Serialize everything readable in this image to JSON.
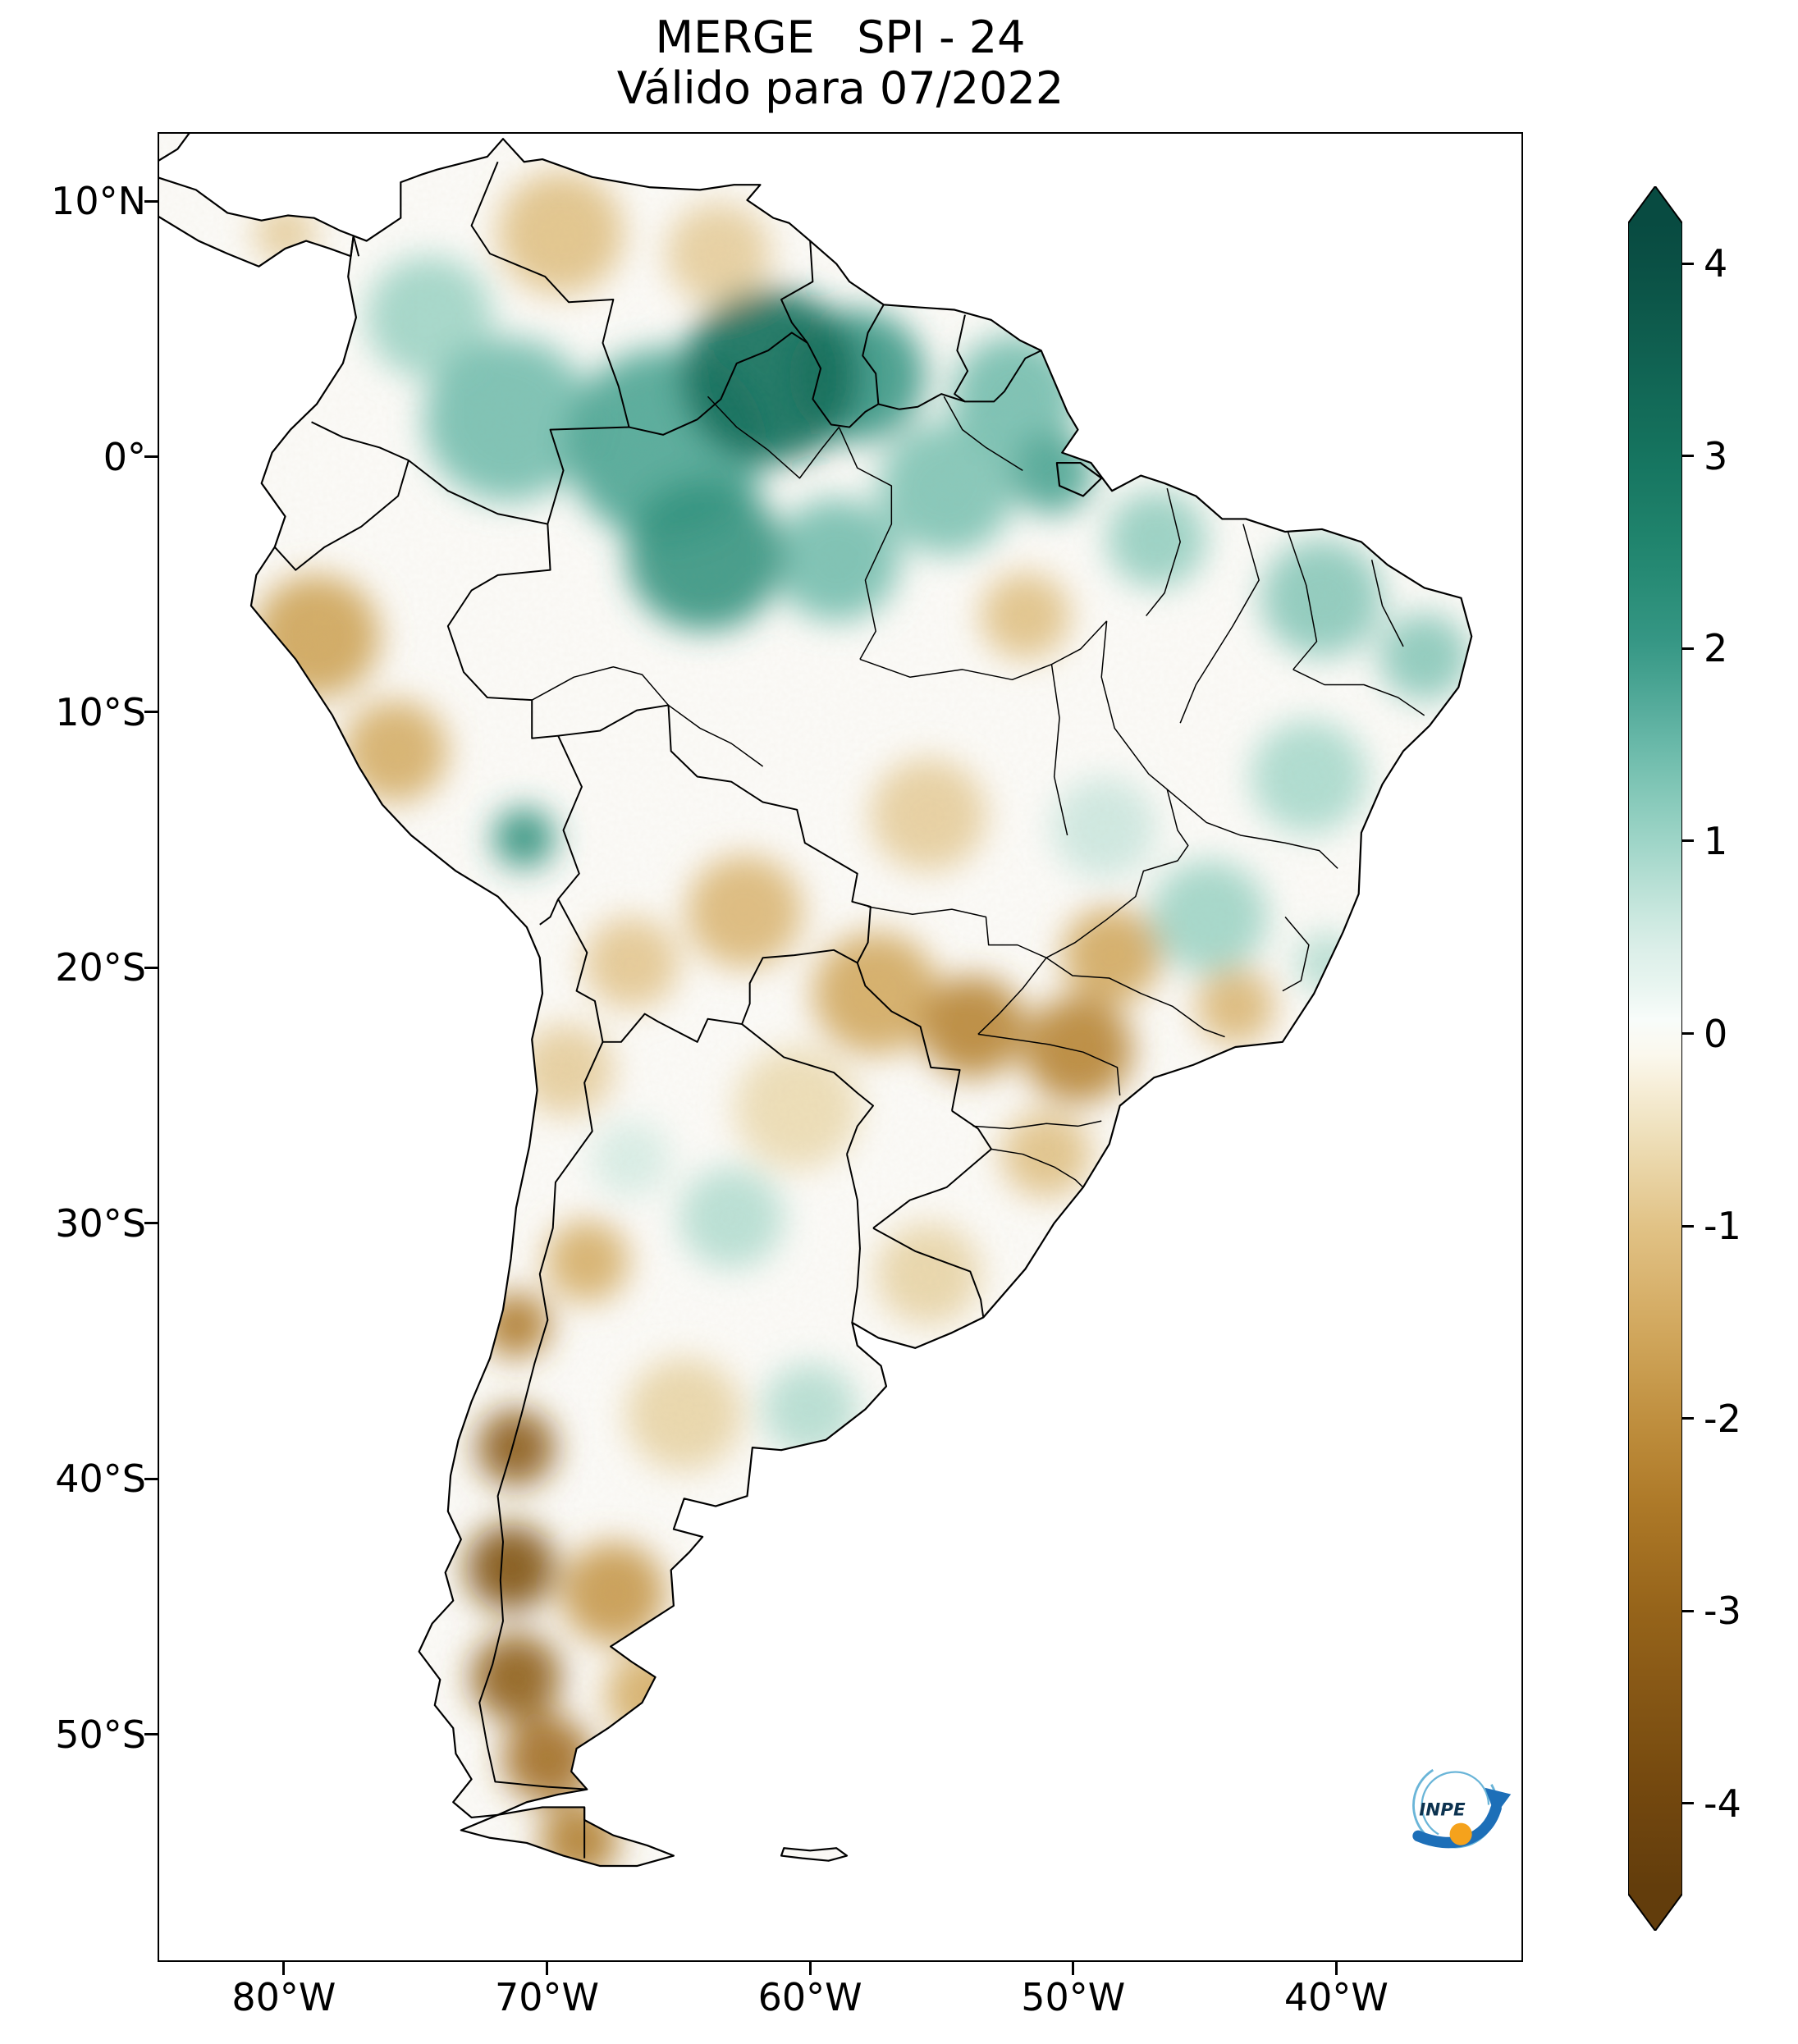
{
  "chart_data": {
    "type": "heatmap",
    "title": "MERGE   SPI - 24",
    "subtitle": "Válido para 07/2022",
    "dataset": "MERGE",
    "index": "SPI-24",
    "valid_for": "07/2022",
    "region": "South America",
    "x_axis": {
      "ticks": [
        {
          "label": "80°W",
          "lon": -80
        },
        {
          "label": "70°W",
          "lon": -70
        },
        {
          "label": "60°W",
          "lon": -60
        },
        {
          "label": "50°W",
          "lon": -50
        },
        {
          "label": "40°W",
          "lon": -40
        }
      ]
    },
    "y_axis": {
      "ticks": [
        {
          "label": "10°N",
          "lat": 10
        },
        {
          "label": "0°",
          "lat": 0
        },
        {
          "label": "10°S",
          "lat": -10
        },
        {
          "label": "20°S",
          "lat": -20
        },
        {
          "label": "30°S",
          "lat": -30
        },
        {
          "label": "40°S",
          "lat": -40
        },
        {
          "label": "50°S",
          "lat": -50
        }
      ]
    },
    "colorbar": {
      "vmin": -4,
      "vmax": 4,
      "extend": "both",
      "palette_positive": "teal-green (wet)",
      "palette_negative": "brown (dry)",
      "ticks": [
        {
          "label": "4",
          "value": 4
        },
        {
          "label": "3",
          "value": 3
        },
        {
          "label": "2",
          "value": 2
        },
        {
          "label": "1",
          "value": 1
        },
        {
          "label": "0",
          "value": 0
        },
        {
          "label": "-1",
          "value": -1
        },
        {
          "label": "-2",
          "value": -2
        },
        {
          "label": "-3",
          "value": -3
        },
        {
          "label": "-4",
          "value": -4
        }
      ]
    },
    "field": [
      {
        "area": "Roraima / far northern Amazon",
        "lon": -61.5,
        "lat": 3.2,
        "spi": 3.2,
        "radius_deg": 3.4
      },
      {
        "area": "Interior Guyana",
        "lon": -58.2,
        "lat": 3.2,
        "spi": 2.0,
        "radius_deg": 2.6
      },
      {
        "area": "Upper Rio Negro (NW Amazonas)",
        "lon": -65.5,
        "lat": 0.5,
        "spi": 1.8,
        "radius_deg": 3.8
      },
      {
        "area": "Central Amazonas",
        "lon": -64.0,
        "lat": -3.8,
        "spi": 2.1,
        "radius_deg": 3.0
      },
      {
        "area": "Lower Madeira / Tapajós",
        "lon": -59.0,
        "lat": -4.0,
        "spi": 1.4,
        "radius_deg": 2.4
      },
      {
        "area": "SE Colombia",
        "lon": -71.5,
        "lat": 1.5,
        "spi": 1.4,
        "radius_deg": 3.2
      },
      {
        "area": "Central Colombia",
        "lon": -74.5,
        "lat": 5.5,
        "spi": 1.0,
        "radius_deg": 2.4
      },
      {
        "area": "Northern Pará",
        "lon": -54.8,
        "lat": -1.2,
        "spi": 1.3,
        "radius_deg": 2.6
      },
      {
        "area": "Amapá / French Guiana",
        "lon": -52.2,
        "lat": 2.4,
        "spi": 1.4,
        "radius_deg": 2.4
      },
      {
        "area": "Amazon mouth (Marajó)",
        "lon": -50.8,
        "lat": -0.6,
        "spi": 1.8,
        "radius_deg": 1.6
      },
      {
        "area": "NW Maranhão",
        "lon": -46.8,
        "lat": -3.2,
        "spi": 1.1,
        "radius_deg": 1.9
      },
      {
        "area": "Ceará / Piauí",
        "lon": -40.5,
        "lat": -5.5,
        "spi": 1.2,
        "radius_deg": 2.3
      },
      {
        "area": "Paraíba / Pernambuco coast",
        "lon": -36.6,
        "lat": -7.8,
        "spi": 1.2,
        "radius_deg": 1.7
      },
      {
        "area": "Central Bahia",
        "lon": -41.0,
        "lat": -12.5,
        "spi": 0.9,
        "radius_deg": 2.2
      },
      {
        "area": "Central Minas Gerais",
        "lon": -44.8,
        "lat": -18.0,
        "spi": 1.0,
        "radius_deg": 2.2
      },
      {
        "area": "Espírito Santo coast",
        "lon": -40.3,
        "lat": -19.8,
        "spi": 0.8,
        "radius_deg": 1.2
      },
      {
        "area": "Goiás / Tocantins light wet",
        "lon": -48.8,
        "lat": -14.5,
        "spi": 0.6,
        "radius_deg": 2.0
      },
      {
        "area": "Southern Peru highlands",
        "lon": -70.9,
        "lat": -14.9,
        "spi": 2.2,
        "radius_deg": 1.2
      },
      {
        "area": "Santiago del Estero light wet",
        "lon": -63.0,
        "lat": -29.8,
        "spi": 0.8,
        "radius_deg": 2.0
      },
      {
        "area": "Buenos Aires light wet",
        "lon": -60.0,
        "lat": -37.3,
        "spi": 0.8,
        "radius_deg": 1.8
      },
      {
        "area": "NW Argentina light wet",
        "lon": -66.8,
        "lat": -27.5,
        "spi": 0.5,
        "radius_deg": 1.5
      },
      {
        "area": "Northern Venezuela Llanos",
        "lon": -69.5,
        "lat": 8.8,
        "spi": -1.0,
        "radius_deg": 2.4
      },
      {
        "area": "Eastern Venezuela",
        "lon": -63.5,
        "lat": 8.0,
        "spi": -0.8,
        "radius_deg": 2.0
      },
      {
        "area": "Northern Peru coast and Andes",
        "lon": -78.8,
        "lat": -7.0,
        "spi": -1.6,
        "radius_deg": 2.4
      },
      {
        "area": "Central Peru",
        "lon": -75.8,
        "lat": -11.5,
        "spi": -1.4,
        "radius_deg": 2.0
      },
      {
        "area": "SE Pará dry patch",
        "lon": -51.8,
        "lat": -6.2,
        "spi": -1.0,
        "radius_deg": 1.7
      },
      {
        "area": "Santa Cruz Bolivia",
        "lon": -62.5,
        "lat": -17.8,
        "spi": -1.2,
        "radius_deg": 2.2
      },
      {
        "area": "Bolivian Altiplano",
        "lon": -66.8,
        "lat": -19.8,
        "spi": -0.9,
        "radius_deg": 1.8
      },
      {
        "area": "Atacama light dry",
        "lon": -69.3,
        "lat": -24.0,
        "spi": -0.8,
        "radius_deg": 1.8
      },
      {
        "area": "Northern Paraguay / Pantanal",
        "lon": -57.5,
        "lat": -21.0,
        "spi": -1.5,
        "radius_deg": 2.4
      },
      {
        "area": "Mato Grosso do Sul / W São Paulo",
        "lon": -53.8,
        "lat": -22.3,
        "spi": -2.2,
        "radius_deg": 2.0
      },
      {
        "area": "São Paulo / N Paraná",
        "lon": -49.8,
        "lat": -23.2,
        "spi": -2.2,
        "radius_deg": 2.1
      },
      {
        "area": "Triângulo Mineiro / S Goiás",
        "lon": -48.5,
        "lat": -19.5,
        "spi": -1.5,
        "radius_deg": 1.9
      },
      {
        "area": "Central Mato Grosso light dry",
        "lon": -55.5,
        "lat": -14.0,
        "spi": -0.8,
        "radius_deg": 2.2
      },
      {
        "area": "Rio de Janeiro / Zona da Mata",
        "lon": -43.8,
        "lat": -21.5,
        "spi": -1.2,
        "radius_deg": 1.5
      },
      {
        "area": "Santa Catarina light dry",
        "lon": -51.0,
        "lat": -27.3,
        "spi": -1.0,
        "radius_deg": 1.7
      },
      {
        "area": "SW Rio Grande do Sul / Uruguay",
        "lon": -55.5,
        "lat": -32.0,
        "spi": -0.7,
        "radius_deg": 2.0
      },
      {
        "area": "Chaco light dry",
        "lon": -60.5,
        "lat": -25.5,
        "spi": -0.6,
        "radius_deg": 2.4
      },
      {
        "area": "Cuyo W Argentina",
        "lon": -68.5,
        "lat": -31.5,
        "spi": -1.4,
        "radius_deg": 1.6
      },
      {
        "area": "Central Chile",
        "lon": -71.2,
        "lat": -34.0,
        "spi": -2.4,
        "radius_deg": 1.3
      },
      {
        "area": "Araucanía / Neuquén Andes",
        "lon": -71.2,
        "lat": -38.8,
        "spi": -3.3,
        "radius_deg": 1.5
      },
      {
        "area": "Northern Patagonia Andes",
        "lon": -71.4,
        "lat": -43.5,
        "spi": -3.6,
        "radius_deg": 1.7
      },
      {
        "area": "Southern Patagonia Andes",
        "lon": -71.2,
        "lat": -47.8,
        "spi": -3.2,
        "radius_deg": 1.7
      },
      {
        "area": "Santa Cruz province",
        "lon": -70.0,
        "lat": -51.0,
        "spi": -2.7,
        "radius_deg": 1.7
      },
      {
        "area": "Tierra del Fuego",
        "lon": -68.8,
        "lat": -54.2,
        "spi": -2.3,
        "radius_deg": 1.5
      },
      {
        "area": "Central Patagonia plateau",
        "lon": -67.5,
        "lat": -44.5,
        "spi": -1.8,
        "radius_deg": 2.0
      },
      {
        "area": "Eastern Patagonia coast",
        "lon": -66.0,
        "lat": -48.5,
        "spi": -1.4,
        "radius_deg": 1.8
      },
      {
        "area": "La Pampa light dry",
        "lon": -64.8,
        "lat": -37.5,
        "spi": -0.7,
        "radius_deg": 2.2
      },
      {
        "area": "Panama light dry",
        "lon": -80.0,
        "lat": 8.8,
        "spi": -0.8,
        "radius_deg": 1.2
      }
    ]
  },
  "logo": {
    "label": "INPE"
  }
}
